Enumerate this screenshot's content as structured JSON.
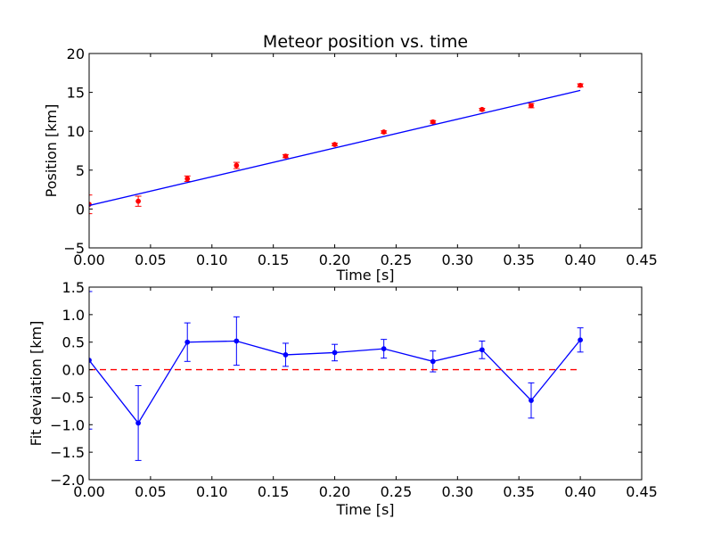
{
  "colors": {
    "fit_line": "#0000ff",
    "data_points": "#ff0000",
    "deviation": "#0000ff",
    "zero_line": "#ff0000",
    "background": "#ffffff"
  },
  "chart_data": [
    {
      "type": "scatter",
      "title": "Meteor position vs. time",
      "xlabel": "Time [s]",
      "ylabel": "Position [km]",
      "xlim": [
        0.0,
        0.45
      ],
      "ylim": [
        -5,
        20
      ],
      "xticks": [
        0.0,
        0.05,
        0.1,
        0.15,
        0.2,
        0.25,
        0.3,
        0.35,
        0.4,
        0.45
      ],
      "xtick_labels": [
        "0.00",
        "0.05",
        "0.10",
        "0.15",
        "0.20",
        "0.25",
        "0.30",
        "0.35",
        "0.40",
        "0.45"
      ],
      "yticks": [
        -5,
        0,
        5,
        10,
        15,
        20
      ],
      "ytick_labels": [
        "−5",
        "0",
        "5",
        "10",
        "15",
        "20"
      ],
      "grid": false,
      "series": [
        {
          "kind": "errorbar-points",
          "color": "#ff0000",
          "x": [
            0.0,
            0.04,
            0.08,
            0.12,
            0.16,
            0.2,
            0.24,
            0.28,
            0.32,
            0.36,
            0.4
          ],
          "y": [
            0.6,
            1.0,
            3.9,
            5.6,
            6.8,
            8.3,
            9.9,
            11.2,
            12.8,
            13.3,
            15.9
          ],
          "yerr": [
            1.2,
            0.65,
            0.35,
            0.4,
            0.2,
            0.15,
            0.15,
            0.17,
            0.15,
            0.28,
            0.2
          ]
        },
        {
          "kind": "line",
          "color": "#0000ff",
          "x": [
            0.0,
            0.4
          ],
          "y": [
            0.45,
            15.25
          ]
        }
      ]
    },
    {
      "type": "line",
      "title": "",
      "xlabel": "Time [s]",
      "ylabel": "Fit deviation [km]",
      "xlim": [
        0.0,
        0.45
      ],
      "ylim": [
        -2.0,
        1.5
      ],
      "xticks": [
        0.0,
        0.05,
        0.1,
        0.15,
        0.2,
        0.25,
        0.3,
        0.35,
        0.4,
        0.45
      ],
      "xtick_labels": [
        "0.00",
        "0.05",
        "0.10",
        "0.15",
        "0.20",
        "0.25",
        "0.30",
        "0.35",
        "0.40",
        "0.45"
      ],
      "yticks": [
        -2.0,
        -1.5,
        -1.0,
        -0.5,
        0.0,
        0.5,
        1.0,
        1.5
      ],
      "ytick_labels": [
        "−2.0",
        "−1.5",
        "−1.0",
        "−0.5",
        "0.0",
        "0.5",
        "1.0",
        "1.5"
      ],
      "grid": false,
      "series": [
        {
          "kind": "errorbar-line",
          "color": "#0000ff",
          "x": [
            0.0,
            0.04,
            0.08,
            0.12,
            0.16,
            0.2,
            0.24,
            0.28,
            0.32,
            0.36,
            0.4
          ],
          "y": [
            0.17,
            -0.97,
            0.5,
            0.52,
            0.27,
            0.31,
            0.38,
            0.15,
            0.36,
            -0.56,
            0.54
          ],
          "yerr": [
            1.25,
            0.68,
            0.35,
            0.44,
            0.21,
            0.15,
            0.17,
            0.19,
            0.16,
            0.32,
            0.22
          ]
        },
        {
          "kind": "dashed-line",
          "color": "#ff0000",
          "x": [
            0.0,
            0.4
          ],
          "y": [
            0.0,
            0.0
          ]
        }
      ]
    }
  ]
}
